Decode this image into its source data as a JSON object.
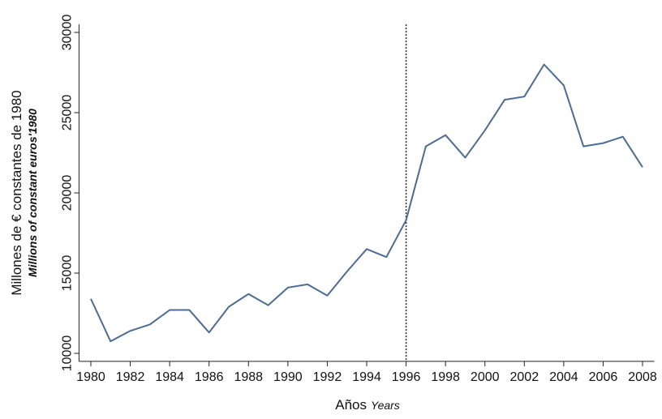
{
  "chart_data": {
    "type": "line",
    "y_label": "Millones de € constantes de 1980",
    "y_label_en": "Millions of constant euros'1980",
    "x_label": "Años",
    "x_label_en": "Years",
    "x": [
      1980,
      1981,
      1982,
      1983,
      1984,
      1985,
      1986,
      1987,
      1988,
      1989,
      1990,
      1991,
      1992,
      1993,
      1994,
      1995,
      1996,
      1997,
      1998,
      1999,
      2000,
      2001,
      2002,
      2003,
      2004,
      2005,
      2006,
      2007,
      2008
    ],
    "series": [
      {
        "color": "#4d6c93",
        "values": [
          13400,
          10750,
          11400,
          11800,
          12700,
          12700,
          11300,
          12900,
          13700,
          13000,
          14100,
          14300,
          13600,
          15100,
          16500,
          16000,
          18300,
          22900,
          23600,
          22200,
          23900,
          25800,
          26000,
          28000,
          26700,
          22900,
          23100,
          23500,
          21600
        ]
      }
    ],
    "xlim": [
      1979.4,
      2008.6
    ],
    "ylim": [
      9500,
      30500
    ],
    "xticks": [
      1980,
      1982,
      1984,
      1986,
      1988,
      1990,
      1992,
      1994,
      1996,
      1998,
      2000,
      2002,
      2004,
      2006,
      2008
    ],
    "yticks": [
      10000,
      15000,
      20000,
      25000,
      30000
    ],
    "vline_x": 1996,
    "grid": false
  }
}
